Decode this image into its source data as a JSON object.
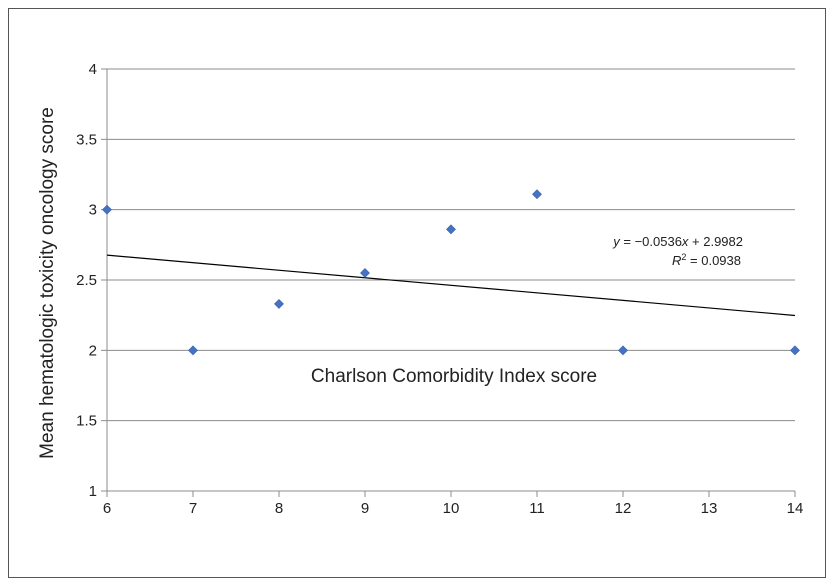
{
  "chart_data": {
    "type": "scatter",
    "title": "",
    "xlabel": "Charlson Comorbidity Index score",
    "ylabel": "Mean hematologic toxicity oncology score",
    "xlim": [
      6,
      14
    ],
    "ylim": [
      1,
      4
    ],
    "xticks": [
      "6",
      "7",
      "8",
      "9",
      "10",
      "11",
      "12",
      "13",
      "14"
    ],
    "yticks": [
      "1",
      "1.5",
      "2",
      "2.5",
      "3",
      "3.5",
      "4"
    ],
    "grid": "horizontal",
    "legend": "none",
    "marker_color": "#4472C4",
    "series": [
      {
        "x": [
          6,
          7,
          8,
          9,
          10,
          11,
          12,
          14
        ],
        "y": [
          3.0,
          2.0,
          2.33,
          2.55,
          2.86,
          3.11,
          2.0,
          2.0
        ]
      }
    ],
    "trendline": {
      "slope": -0.0536,
      "intercept": 2.9982,
      "equation_parts": [
        "y",
        " = −0.0536",
        "x",
        " + 2.9982"
      ],
      "r2_parts": [
        "R",
        "2",
        " = 0.0938"
      ]
    }
  }
}
